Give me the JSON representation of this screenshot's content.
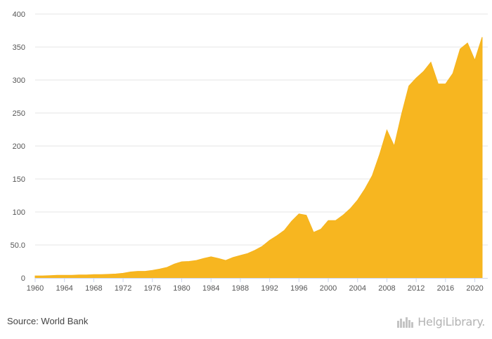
{
  "colors": {
    "area": "#f7b620",
    "area_stroke": "#f5b41e",
    "grid": "#e6e6e6",
    "axis": "#ccd6eb"
  },
  "footer": {
    "source": "Source: World Bank",
    "logo_text": "HelgiLibrary."
  },
  "chart_data": {
    "type": "area",
    "title": "",
    "xlabel": "",
    "ylabel": "",
    "xlim": [
      1960,
      2021
    ],
    "ylim": [
      0,
      400
    ],
    "grid": true,
    "x_ticks": [
      "1960",
      "1964",
      "1968",
      "1972",
      "1976",
      "1980",
      "1984",
      "1988",
      "1992",
      "1996",
      "2000",
      "2004",
      "2008",
      "2012",
      "2016",
      "2020"
    ],
    "y_ticks": [
      "0",
      "50.0",
      "100",
      "150",
      "200",
      "250",
      "300",
      "350",
      "400"
    ],
    "x": [
      1960,
      1961,
      1962,
      1963,
      1964,
      1965,
      1966,
      1967,
      1968,
      1969,
      1970,
      1971,
      1972,
      1973,
      1974,
      1975,
      1976,
      1977,
      1978,
      1979,
      1980,
      1981,
      1982,
      1983,
      1984,
      1985,
      1986,
      1987,
      1988,
      1989,
      1990,
      1991,
      1992,
      1993,
      1994,
      1995,
      1996,
      1997,
      1998,
      1999,
      2000,
      2001,
      2002,
      2003,
      2004,
      2005,
      2006,
      2007,
      2008,
      2009,
      2010,
      2011,
      2012,
      2013,
      2014,
      2015,
      2016,
      2017,
      2018,
      2019,
      2020,
      2021
    ],
    "series": [
      {
        "values": [
          3,
          3,
          3.5,
          4,
          4,
          4,
          4.5,
          4.5,
          5,
          5,
          5.5,
          6,
          7,
          9,
          10,
          10,
          11.5,
          13.5,
          16,
          21,
          24.5,
          25,
          26.5,
          29.5,
          32,
          29.5,
          26.5,
          31,
          34,
          37,
          42,
          48,
          57,
          64,
          72,
          86,
          97,
          95,
          69,
          74,
          87,
          87,
          95,
          105,
          118,
          135,
          155,
          187,
          224,
          200,
          248,
          291,
          303,
          313,
          327,
          294,
          294,
          310,
          347,
          356,
          330,
          365
        ]
      }
    ]
  }
}
